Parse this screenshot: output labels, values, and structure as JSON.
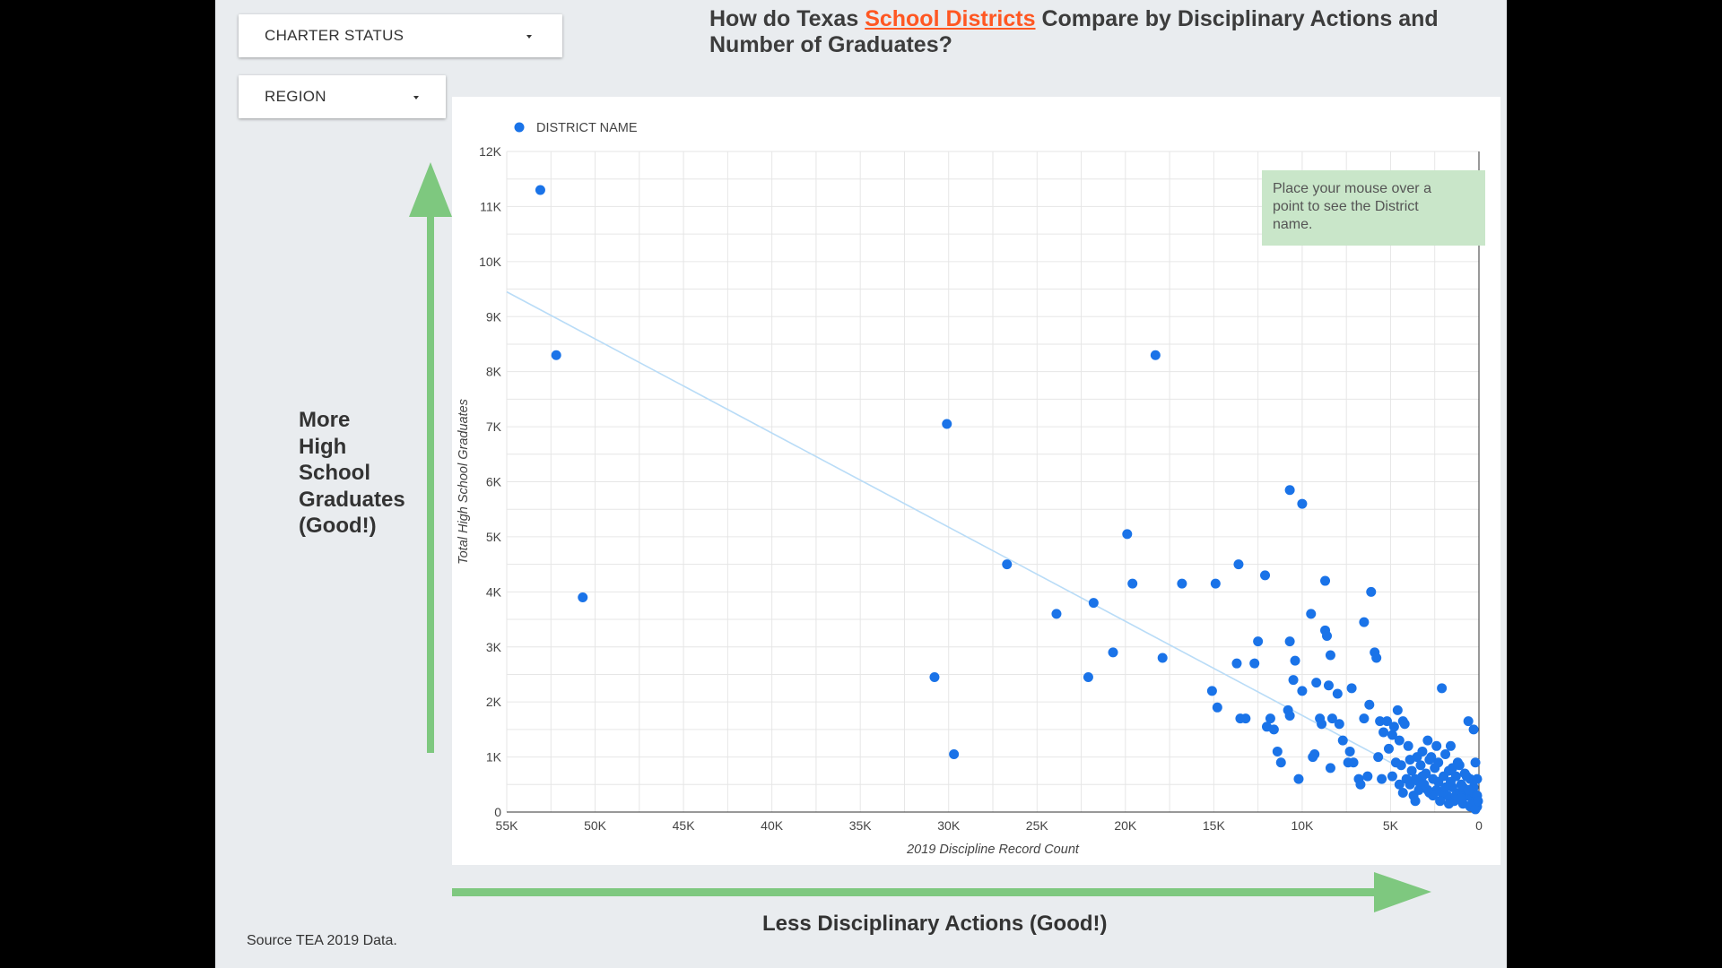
{
  "filters": {
    "charter_status_label": "CHARTER STATUS",
    "region_label": "REGION"
  },
  "title": {
    "prefix": "How do Texas ",
    "link": "School Districts",
    "suffix": " Compare by Disciplinary Actions and Number of Graduates?"
  },
  "annotations": {
    "left_label": [
      "More",
      "High",
      "School",
      "Graduates",
      "(Good!)"
    ],
    "bottom_label": "Less Disciplinary Actions (Good!)",
    "source": "Source TEA 2019 Data.",
    "tooltip_hint": [
      "Place your mouse over a",
      "point to see the District",
      "name."
    ]
  },
  "colors": {
    "point": "#1a73e8",
    "trendline": "#b9dcf7",
    "up_arrow": "#7ec87f",
    "right_arrow": "#7ec87f",
    "hint_box": "#c9e6c9",
    "title_link": "#ff5722"
  },
  "chart_data": {
    "type": "scatter",
    "xlabel": "2019 Discipline Record Count",
    "ylabel": "Total High School Graduates",
    "x_axis_reversed": true,
    "xlim": [
      0,
      55000
    ],
    "ylim": [
      0,
      12000
    ],
    "x_ticks": [
      55000,
      50000,
      45000,
      40000,
      35000,
      30000,
      25000,
      20000,
      15000,
      10000,
      5000,
      0
    ],
    "x_tick_labels": [
      "55K",
      "50K",
      "45K",
      "40K",
      "35K",
      "30K",
      "25K",
      "20K",
      "15K",
      "10K",
      "5K",
      "0"
    ],
    "y_ticks": [
      0,
      1000,
      2000,
      3000,
      4000,
      5000,
      6000,
      7000,
      8000,
      9000,
      10000,
      11000,
      12000
    ],
    "y_tick_labels": [
      "0",
      "1K",
      "2K",
      "3K",
      "4K",
      "5K",
      "6K",
      "7K",
      "8K",
      "9K",
      "10K",
      "11K",
      "12K"
    ],
    "grid": true,
    "legend": {
      "position": "top-left",
      "entries": [
        "DISTRICT NAME"
      ]
    },
    "trendline": {
      "x1": 55000,
      "y1": 9450,
      "x2": 5000,
      "y2": 900
    },
    "series": [
      {
        "name": "DISTRICT NAME",
        "points": [
          [
            53100,
            11300
          ],
          [
            52200,
            8300
          ],
          [
            50700,
            3900
          ],
          [
            30100,
            7050
          ],
          [
            30800,
            2450
          ],
          [
            29700,
            1050
          ],
          [
            26700,
            4500
          ],
          [
            23900,
            3600
          ],
          [
            22100,
            2450
          ],
          [
            21800,
            3800
          ],
          [
            20700,
            2900
          ],
          [
            19900,
            5050
          ],
          [
            19600,
            4150
          ],
          [
            18300,
            8300
          ],
          [
            17900,
            2800
          ],
          [
            16800,
            4150
          ],
          [
            15100,
            2200
          ],
          [
            14900,
            4150
          ],
          [
            14800,
            1900
          ],
          [
            13700,
            2700
          ],
          [
            13600,
            4500
          ],
          [
            13500,
            1700
          ],
          [
            13200,
            1700
          ],
          [
            12700,
            2700
          ],
          [
            12500,
            3100
          ],
          [
            12100,
            4300
          ],
          [
            12000,
            1550
          ],
          [
            11800,
            1700
          ],
          [
            11600,
            1500
          ],
          [
            11400,
            1100
          ],
          [
            11200,
            900
          ],
          [
            10800,
            1850
          ],
          [
            10700,
            1750
          ],
          [
            10700,
            5850
          ],
          [
            10700,
            3100
          ],
          [
            10500,
            2400
          ],
          [
            10400,
            2750
          ],
          [
            10200,
            600
          ],
          [
            10000,
            5600
          ],
          [
            10000,
            2200
          ],
          [
            9500,
            3600
          ],
          [
            9400,
            1000
          ],
          [
            9300,
            1050
          ],
          [
            9200,
            2350
          ],
          [
            9000,
            1700
          ],
          [
            8900,
            1600
          ],
          [
            8700,
            4200
          ],
          [
            8700,
            3300
          ],
          [
            8600,
            3200
          ],
          [
            8500,
            2300
          ],
          [
            8400,
            800
          ],
          [
            8400,
            2850
          ],
          [
            8300,
            1700
          ],
          [
            8000,
            2150
          ],
          [
            7900,
            1600
          ],
          [
            7700,
            1300
          ],
          [
            7400,
            900
          ],
          [
            7300,
            1100
          ],
          [
            7200,
            2250
          ],
          [
            7100,
            900
          ],
          [
            6800,
            600
          ],
          [
            6700,
            500
          ],
          [
            6500,
            1700
          ],
          [
            6500,
            3450
          ],
          [
            6300,
            650
          ],
          [
            6200,
            1950
          ],
          [
            6100,
            4000
          ],
          [
            5900,
            2900
          ],
          [
            5800,
            2800
          ],
          [
            5700,
            1000
          ],
          [
            5600,
            1650
          ],
          [
            5500,
            600
          ],
          [
            5400,
            1450
          ],
          [
            5200,
            1650
          ],
          [
            5100,
            1150
          ],
          [
            4900,
            1400
          ],
          [
            4800,
            1550
          ],
          [
            4700,
            900
          ],
          [
            4600,
            1850
          ],
          [
            4500,
            1300
          ],
          [
            4400,
            850
          ],
          [
            4300,
            1650
          ],
          [
            4200,
            1600
          ],
          [
            4000,
            1200
          ],
          [
            3900,
            500
          ],
          [
            3800,
            750
          ],
          [
            3700,
            300
          ],
          [
            3600,
            600
          ],
          [
            3500,
            1000
          ],
          [
            3400,
            400
          ],
          [
            3300,
            850
          ],
          [
            3200,
            1100
          ],
          [
            3100,
            500
          ],
          [
            3000,
            700
          ],
          [
            2900,
            1300
          ],
          [
            2800,
            350
          ],
          [
            2700,
            1000
          ],
          [
            2600,
            600
          ],
          [
            2500,
            800
          ],
          [
            2400,
            400
          ],
          [
            2300,
            550
          ],
          [
            2300,
            900
          ],
          [
            2100,
            2250
          ],
          [
            2000,
            650
          ],
          [
            1900,
            1050
          ],
          [
            1800,
            300
          ],
          [
            1700,
            750
          ],
          [
            1600,
            1200
          ],
          [
            1500,
            450
          ],
          [
            1400,
            200
          ],
          [
            1300,
            650
          ],
          [
            1200,
            900
          ],
          [
            1100,
            350
          ],
          [
            1000,
            500
          ],
          [
            900,
            150
          ],
          [
            800,
            700
          ],
          [
            700,
            300
          ],
          [
            600,
            1650
          ],
          [
            500,
            600
          ],
          [
            400,
            250
          ],
          [
            300,
            1500
          ],
          [
            300,
            450
          ],
          [
            200,
            200
          ],
          [
            100,
            600
          ],
          [
            100,
            100
          ],
          [
            4900,
            650
          ],
          [
            4300,
            350
          ],
          [
            3900,
            950
          ],
          [
            3600,
            200
          ],
          [
            3200,
            650
          ],
          [
            2800,
            950
          ],
          [
            2600,
            300
          ],
          [
            2400,
            1200
          ],
          [
            2100,
            350
          ],
          [
            1900,
            450
          ],
          [
            1700,
            150
          ],
          [
            1500,
            800
          ],
          [
            1300,
            300
          ],
          [
            1100,
            850
          ],
          [
            900,
            450
          ],
          [
            700,
            650
          ],
          [
            500,
            100
          ],
          [
            300,
            350
          ],
          [
            200,
            900
          ],
          [
            4500,
            500
          ],
          [
            4100,
            600
          ],
          [
            3400,
            550
          ],
          [
            2900,
            400
          ],
          [
            2200,
            200
          ],
          [
            1600,
            550
          ],
          [
            1000,
            250
          ],
          [
            600,
            400
          ],
          [
            400,
            150
          ],
          [
            200,
            50
          ],
          [
            100,
            300
          ],
          [
            50,
            200
          ]
        ]
      }
    ]
  }
}
